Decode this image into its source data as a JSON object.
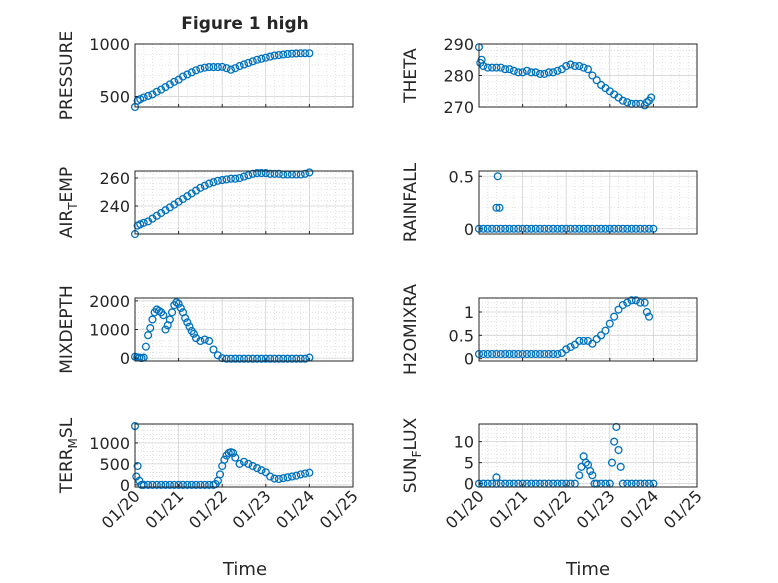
{
  "figure": {
    "title": "Figure 1 high",
    "xlabel": "Time",
    "x_ticks": [
      "01/20",
      "01/21",
      "01/22",
      "01/23",
      "01/24",
      "01/25"
    ],
    "marker_color": "#0072BD"
  },
  "chart_data": [
    {
      "type": "scatter",
      "ylabel": "PRESSURE",
      "xlim": [
        0,
        5
      ],
      "ylim": [
        400,
        1000
      ],
      "yticks": [
        500,
        1000
      ],
      "ytick_labels": [
        "500",
        "1000"
      ],
      "grid": true,
      "series": [
        {
          "x": [
            0,
            0.06,
            0.12,
            0.2,
            0.3,
            0.4,
            0.5,
            0.6,
            0.7,
            0.8,
            0.9,
            1.0,
            1.1,
            1.2,
            1.3,
            1.4,
            1.5,
            1.6,
            1.7,
            1.8,
            1.9,
            2.0,
            2.1,
            2.2,
            2.3,
            2.4,
            2.5,
            2.6,
            2.7,
            2.8,
            2.9,
            3.0,
            3.1,
            3.2,
            3.3,
            3.4,
            3.5,
            3.6,
            3.7,
            3.8,
            3.9,
            4.0
          ],
          "y": [
            400,
            460,
            475,
            490,
            505,
            520,
            545,
            565,
            590,
            615,
            640,
            660,
            690,
            710,
            730,
            750,
            765,
            775,
            780,
            780,
            780,
            782,
            770,
            755,
            770,
            790,
            805,
            820,
            835,
            850,
            860,
            870,
            880,
            890,
            895,
            900,
            905,
            908,
            910,
            912,
            912,
            912
          ]
        }
      ]
    },
    {
      "type": "scatter",
      "ylabel": "THETA",
      "xlim": [
        0,
        5
      ],
      "ylim": [
        270,
        290
      ],
      "yticks": [
        270,
        280,
        290
      ],
      "ytick_labels": [
        "270",
        "280",
        "290"
      ],
      "grid": true,
      "series": [
        {
          "x": [
            0,
            0.03,
            0.06,
            0.1,
            0.2,
            0.3,
            0.4,
            0.5,
            0.6,
            0.7,
            0.8,
            0.9,
            1.0,
            1.1,
            1.2,
            1.3,
            1.4,
            1.5,
            1.6,
            1.7,
            1.8,
            1.9,
            2.0,
            2.1,
            2.2,
            2.3,
            2.4,
            2.5,
            2.6,
            2.7,
            2.8,
            2.9,
            3.0,
            3.1,
            3.2,
            3.3,
            3.4,
            3.5,
            3.6,
            3.7,
            3.8,
            3.85,
            3.9,
            3.95
          ],
          "y": [
            289,
            284,
            285,
            283,
            282.5,
            282.5,
            282.5,
            282.5,
            282,
            282,
            281.5,
            281,
            281,
            281.5,
            281,
            281,
            280.5,
            280.5,
            281,
            281,
            281.5,
            282,
            283,
            283.5,
            283,
            283,
            282.5,
            282,
            280,
            278.5,
            277,
            276,
            275,
            274,
            273,
            272,
            271.5,
            271,
            271,
            271,
            270.5,
            271.5,
            272,
            273
          ]
        }
      ]
    },
    {
      "type": "scatter",
      "ylabel": "AIR_TEMP",
      "xlim": [
        0,
        5
      ],
      "ylim": [
        220,
        265
      ],
      "yticks": [
        240,
        260
      ],
      "ytick_labels": [
        "240",
        "260"
      ],
      "grid": true,
      "series": [
        {
          "x": [
            0,
            0.06,
            0.12,
            0.2,
            0.3,
            0.4,
            0.5,
            0.6,
            0.7,
            0.8,
            0.9,
            1.0,
            1.1,
            1.2,
            1.3,
            1.4,
            1.5,
            1.6,
            1.7,
            1.8,
            1.9,
            2.0,
            2.1,
            2.2,
            2.3,
            2.4,
            2.5,
            2.6,
            2.7,
            2.8,
            2.9,
            3.0,
            3.1,
            3.2,
            3.3,
            3.4,
            3.5,
            3.6,
            3.7,
            3.8,
            3.9,
            4.0
          ],
          "y": [
            220,
            226,
            227,
            228,
            229,
            231,
            233,
            235,
            237,
            239,
            241,
            243,
            245,
            247,
            249,
            251,
            253,
            254.5,
            256,
            257,
            258,
            258.5,
            259,
            259.5,
            259.5,
            260,
            261,
            262,
            263,
            263.5,
            263.5,
            263.5,
            263,
            263,
            263,
            262.5,
            262.5,
            262.5,
            262.5,
            262.5,
            263,
            264
          ]
        }
      ]
    },
    {
      "type": "scatter",
      "ylabel": "RAINFALL",
      "xlim": [
        0,
        5
      ],
      "ylim": [
        -0.05,
        0.55
      ],
      "yticks": [
        0,
        0.5
      ],
      "ytick_labels": [
        "0",
        "0.5"
      ],
      "grid": true,
      "series": [
        {
          "x": [
            0,
            0.1,
            0.2,
            0.3,
            0.4,
            0.5,
            0.6,
            0.7,
            0.8,
            0.9,
            1.0,
            1.1,
            1.2,
            1.3,
            1.4,
            1.5,
            1.6,
            1.7,
            1.8,
            1.9,
            2.0,
            2.1,
            2.2,
            2.3,
            2.4,
            2.5,
            2.6,
            2.7,
            2.8,
            2.9,
            3.0,
            3.1,
            3.2,
            3.3,
            3.4,
            3.5,
            3.6,
            3.7,
            3.8,
            3.9,
            4.0,
            0.4,
            0.43,
            0.47
          ],
          "y": [
            0,
            0,
            0,
            0,
            0,
            0,
            0,
            0,
            0,
            0,
            0,
            0,
            0,
            0,
            0,
            0,
            0,
            0,
            0,
            0,
            0,
            0,
            0,
            0,
            0,
            0,
            0,
            0,
            0,
            0,
            0,
            0,
            0,
            0,
            0,
            0,
            0,
            0,
            0,
            0,
            0,
            0.2,
            0.5,
            0.2
          ]
        }
      ]
    },
    {
      "type": "scatter",
      "ylabel": "MIXDEPTH",
      "xlim": [
        0,
        5
      ],
      "ylim": [
        -100,
        2100
      ],
      "yticks": [
        0,
        1000,
        2000
      ],
      "ytick_labels": [
        "0",
        "1000",
        "2000"
      ],
      "grid": true,
      "series": [
        {
          "x": [
            0,
            0.05,
            0.1,
            0.15,
            0.2,
            0.25,
            0.3,
            0.35,
            0.4,
            0.45,
            0.5,
            0.55,
            0.6,
            0.65,
            0.7,
            0.75,
            0.8,
            0.85,
            0.9,
            0.95,
            1.0,
            1.05,
            1.1,
            1.15,
            1.2,
            1.25,
            1.3,
            1.35,
            1.4,
            1.5,
            1.6,
            1.7,
            1.8,
            1.9,
            2.0,
            2.1,
            2.2,
            2.3,
            2.4,
            2.5,
            2.6,
            2.7,
            2.8,
            2.9,
            3.0,
            3.1,
            3.2,
            3.3,
            3.4,
            3.5,
            3.6,
            3.7,
            3.8,
            3.9,
            4.0
          ],
          "y": [
            50,
            30,
            20,
            0,
            20,
            400,
            800,
            1050,
            1350,
            1600,
            1700,
            1650,
            1600,
            1500,
            1000,
            1150,
            1350,
            1600,
            1850,
            1950,
            1900,
            1750,
            1600,
            1400,
            1250,
            1100,
            950,
            850,
            700,
            600,
            650,
            600,
            300,
            100,
            0,
            -20,
            -20,
            -20,
            -20,
            -20,
            -20,
            -20,
            -20,
            -20,
            -20,
            -20,
            -20,
            -20,
            -20,
            -20,
            -20,
            -20,
            -20,
            -20,
            20
          ]
        }
      ]
    },
    {
      "type": "scatter",
      "ylabel": "H2OMIXRA",
      "xlim": [
        0,
        5
      ],
      "ylim": [
        -0.05,
        1.3
      ],
      "yticks": [
        0,
        0.5,
        1
      ],
      "ytick_labels": [
        "0",
        "0.5",
        "1"
      ],
      "grid": true,
      "series": [
        {
          "x": [
            0,
            0.1,
            0.2,
            0.3,
            0.4,
            0.5,
            0.6,
            0.7,
            0.8,
            0.9,
            1.0,
            1.1,
            1.2,
            1.3,
            1.4,
            1.5,
            1.6,
            1.7,
            1.8,
            1.9,
            2.0,
            2.1,
            2.2,
            2.3,
            2.4,
            2.5,
            2.6,
            2.7,
            2.8,
            2.9,
            3.0,
            3.1,
            3.2,
            3.3,
            3.4,
            3.5,
            3.6,
            3.7,
            3.8,
            3.85,
            3.9
          ],
          "y": [
            0.1,
            0.1,
            0.1,
            0.1,
            0.1,
            0.1,
            0.1,
            0.1,
            0.1,
            0.1,
            0.1,
            0.1,
            0.1,
            0.1,
            0.1,
            0.1,
            0.1,
            0.1,
            0.1,
            0.12,
            0.2,
            0.25,
            0.3,
            0.38,
            0.38,
            0.38,
            0.32,
            0.42,
            0.5,
            0.6,
            0.75,
            0.9,
            1.05,
            1.15,
            1.2,
            1.25,
            1.25,
            1.2,
            1.2,
            1.0,
            0.9
          ]
        }
      ]
    },
    {
      "type": "scatter",
      "ylabel": "TERR_MSL",
      "xlim": [
        0,
        5
      ],
      "ylim": [
        -50,
        1450
      ],
      "yticks": [
        0,
        500,
        1000
      ],
      "ytick_labels": [
        "0",
        "500",
        "1000"
      ],
      "grid": true,
      "series": [
        {
          "x": [
            0,
            0.03,
            0.06,
            0.1,
            0.15,
            0.2,
            0.3,
            0.4,
            0.5,
            0.6,
            0.7,
            0.8,
            0.9,
            1.0,
            1.1,
            1.2,
            1.3,
            1.4,
            1.5,
            1.6,
            1.7,
            1.8,
            1.85,
            1.9,
            1.95,
            2.0,
            2.05,
            2.1,
            2.15,
            2.2,
            2.25,
            2.3,
            2.4,
            2.5,
            2.6,
            2.7,
            2.8,
            2.9,
            3.0,
            3.1,
            3.2,
            3.3,
            3.4,
            3.5,
            3.6,
            3.7,
            3.8,
            3.9,
            4.0
          ],
          "y": [
            1400,
            200,
            450,
            100,
            0,
            0,
            0,
            0,
            0,
            0,
            0,
            0,
            0,
            0,
            0,
            0,
            0,
            0,
            0,
            0,
            0,
            0,
            20,
            100,
            250,
            450,
            600,
            700,
            760,
            780,
            760,
            650,
            500,
            550,
            500,
            450,
            400,
            350,
            300,
            200,
            150,
            140,
            160,
            180,
            200,
            220,
            250,
            270,
            290
          ]
        }
      ]
    },
    {
      "type": "scatter",
      "ylabel": "SUN_FLUX",
      "xlim": [
        0,
        5
      ],
      "ylim": [
        -0.8,
        14.2
      ],
      "yticks": [
        0,
        5,
        10
      ],
      "ytick_labels": [
        "0",
        "5",
        "10"
      ],
      "grid": true,
      "series": [
        {
          "x": [
            0,
            0.1,
            0.2,
            0.3,
            0.4,
            0.5,
            0.6,
            0.7,
            0.8,
            0.9,
            1.0,
            1.1,
            1.2,
            1.3,
            1.4,
            1.5,
            1.6,
            1.7,
            1.8,
            1.9,
            2.0,
            2.1,
            2.2,
            2.3,
            2.35,
            2.4,
            2.45,
            2.5,
            2.55,
            2.6,
            2.65,
            2.7,
            2.8,
            2.9,
            3.0,
            3.05,
            3.1,
            3.15,
            3.2,
            3.25,
            3.3,
            3.4,
            3.5,
            3.6,
            3.7,
            3.8,
            3.9,
            4.0,
            0.4
          ],
          "y": [
            0,
            0,
            0,
            0,
            0,
            0,
            0,
            0,
            0,
            0,
            0,
            0,
            0,
            0,
            0,
            0,
            0,
            0,
            0,
            0,
            0,
            0,
            0,
            2,
            4,
            6.5,
            5,
            4.5,
            3,
            2,
            0,
            0,
            0,
            0,
            0,
            5,
            10,
            13.5,
            8,
            4,
            0,
            0,
            0,
            0,
            0,
            0,
            0,
            0,
            1.5
          ]
        }
      ]
    }
  ]
}
